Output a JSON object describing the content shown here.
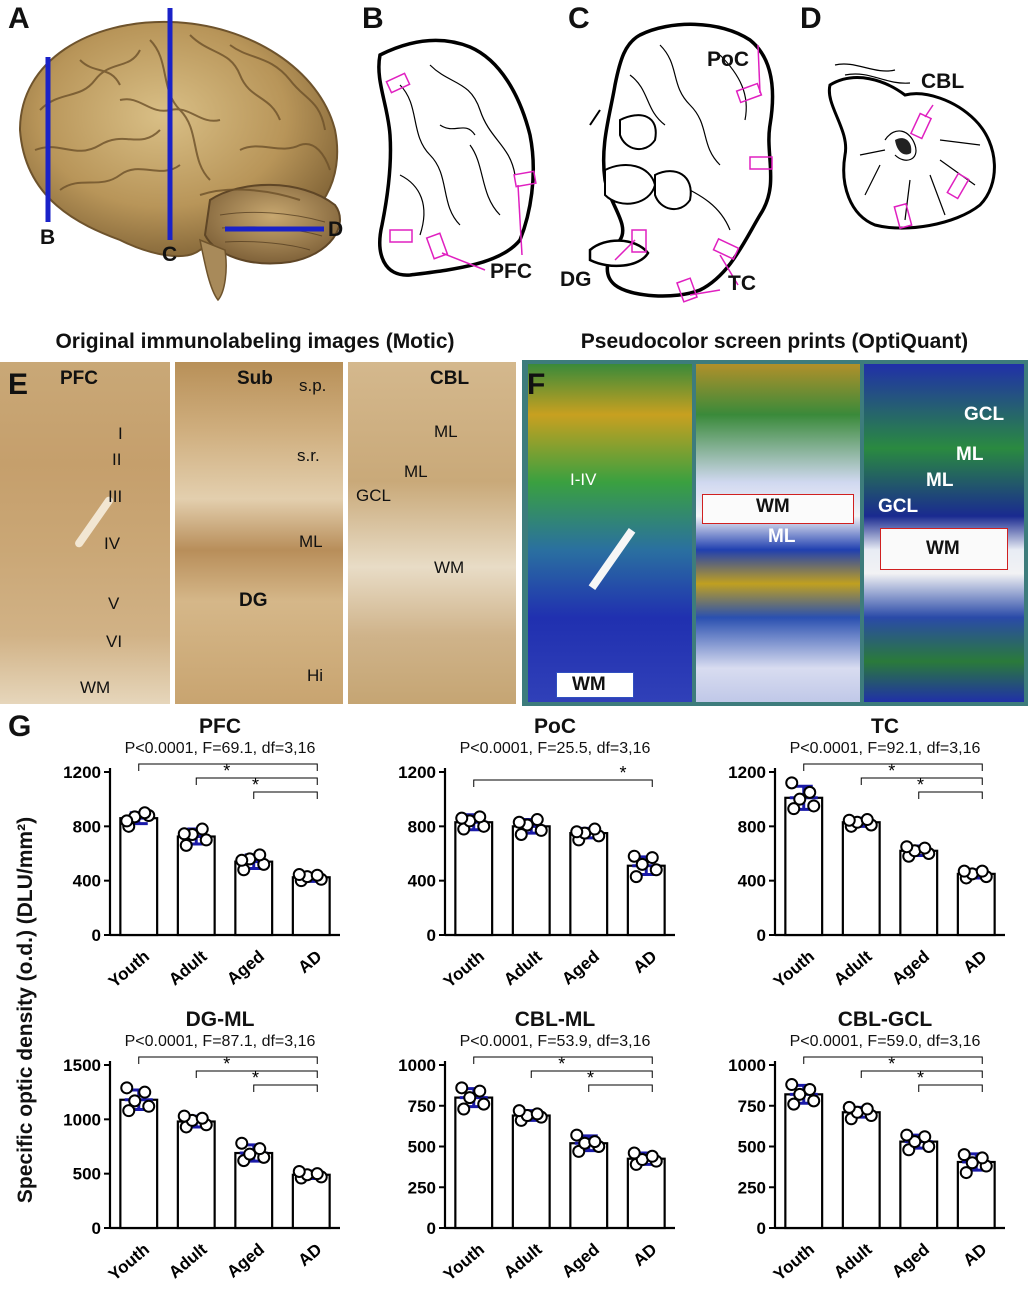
{
  "panel_letters": [
    "A",
    "B",
    "C",
    "D",
    "E",
    "F",
    "G"
  ],
  "panel_a": {
    "cut_labels": [
      "B",
      "C",
      "D"
    ]
  },
  "panel_b": {
    "region": "PFC"
  },
  "panel_c": {
    "regions": [
      "PoC",
      "DG",
      "TC"
    ]
  },
  "panel_d": {
    "region": "CBL"
  },
  "panel_e": {
    "title": "Original immunolabeling images (Motic)",
    "pfc": {
      "heading": "PFC",
      "layers": [
        "I",
        "II",
        "III",
        "IV",
        "V",
        "VI",
        "WM"
      ]
    },
    "sub": {
      "heading": "Sub",
      "labels": [
        "s.p.",
        "s.r.",
        "ML",
        "DG",
        "Hi"
      ]
    },
    "cbl": {
      "heading": "CBL",
      "labels": [
        "ML",
        "ML",
        "GCL",
        "WM"
      ]
    }
  },
  "panel_f": {
    "title": "Pseudocolor screen prints (OptiQuant)",
    "img1": [
      "I-IV",
      "WM"
    ],
    "img2": [
      "WM",
      "ML"
    ],
    "img3": [
      "GCL",
      "ML",
      "ML",
      "GCL",
      "WM"
    ]
  },
  "y_axis_label": "Specific optic density (o.d.) (DLU/mm²)",
  "colors": {
    "bar_fill": "#ffffff",
    "bar_stroke": "#000000",
    "errorbar": "#1a1aa8",
    "marker": "#000000",
    "frame_teal": "#3d7c7c",
    "cut_line": "#1a22c8",
    "roi_box": "#e020c0"
  },
  "chart_data": [
    {
      "type": "bar",
      "title": "PFC",
      "subtitle": "P<0.0001, F=69.1, df=3,16",
      "categories": [
        "Youth",
        "Adult",
        "Aged",
        "AD"
      ],
      "values": [
        860,
        725,
        540,
        425
      ],
      "sd": [
        40,
        55,
        50,
        30
      ],
      "points": [
        [
          800,
          880,
          870,
          900,
          840
        ],
        [
          660,
          700,
          740,
          780,
          745
        ],
        [
          480,
          520,
          560,
          590,
          550
        ],
        [
          400,
          410,
          430,
          440,
          445
        ]
      ],
      "ylim": [
        0,
        1200
      ],
      "yticks": [
        0,
        400,
        800,
        1200
      ],
      "significance": [
        [
          "Youth",
          "AD"
        ],
        [
          "Adult",
          "AD"
        ],
        [
          "Aged",
          "AD"
        ]
      ],
      "sig_label": "*"
    },
    {
      "type": "bar",
      "title": "PoC",
      "subtitle": "P<0.0001, F=25.5, df=3,16",
      "categories": [
        "Youth",
        "Adult",
        "Aged",
        "AD"
      ],
      "values": [
        830,
        800,
        750,
        510
      ],
      "sd": [
        55,
        50,
        35,
        65
      ],
      "points": [
        [
          780,
          800,
          840,
          870,
          860
        ],
        [
          740,
          770,
          810,
          850,
          830
        ],
        [
          700,
          730,
          750,
          780,
          760
        ],
        [
          430,
          480,
          520,
          570,
          580
        ]
      ],
      "ylim": [
        0,
        1200
      ],
      "yticks": [
        0,
        400,
        800,
        1200
      ],
      "significance": [
        [
          "Youth",
          "AD"
        ]
      ],
      "sig_label": "*"
    },
    {
      "type": "bar",
      "title": "TC",
      "subtitle": "P<0.0001, F=92.1, df=3,16",
      "categories": [
        "Youth",
        "Adult",
        "Aged",
        "AD"
      ],
      "values": [
        1010,
        830,
        620,
        450
      ],
      "sd": [
        85,
        30,
        35,
        30
      ],
      "points": [
        [
          930,
          950,
          1000,
          1050,
          1120
        ],
        [
          800,
          810,
          830,
          850,
          845
        ],
        [
          580,
          600,
          620,
          640,
          650
        ],
        [
          420,
          430,
          450,
          470,
          470
        ]
      ],
      "ylim": [
        0,
        1200
      ],
      "yticks": [
        0,
        400,
        800,
        1200
      ],
      "significance": [
        [
          "Youth",
          "AD"
        ],
        [
          "Adult",
          "AD"
        ],
        [
          "Aged",
          "AD"
        ]
      ],
      "sig_label": "*"
    },
    {
      "type": "bar",
      "title": "DG-ML",
      "subtitle": "P<0.0001, F=87.1, df=3,16",
      "categories": [
        "Youth",
        "Adult",
        "Aged",
        "AD"
      ],
      "values": [
        1180,
        980,
        690,
        490
      ],
      "sd": [
        90,
        50,
        75,
        35
      ],
      "points": [
        [
          1080,
          1120,
          1170,
          1250,
          1290
        ],
        [
          930,
          950,
          990,
          1010,
          1030
        ],
        [
          620,
          650,
          680,
          730,
          780
        ],
        [
          460,
          470,
          490,
          500,
          520
        ]
      ],
      "ylim": [
        0,
        1500
      ],
      "yticks": [
        0,
        500,
        1000,
        1500
      ],
      "significance": [
        [
          "Youth",
          "AD"
        ],
        [
          "Adult",
          "AD"
        ],
        [
          "Aged",
          "AD"
        ]
      ],
      "sig_label": "*"
    },
    {
      "type": "bar",
      "title": "CBL-ML",
      "subtitle": "P<0.0001, F=53.9, df=3,16",
      "categories": [
        "Youth",
        "Adult",
        "Aged",
        "AD"
      ],
      "values": [
        800,
        690,
        520,
        425
      ],
      "sd": [
        55,
        30,
        45,
        35
      ],
      "points": [
        [
          730,
          760,
          800,
          840,
          860
        ],
        [
          660,
          680,
          690,
          700,
          720
        ],
        [
          470,
          500,
          520,
          530,
          570
        ],
        [
          390,
          410,
          420,
          440,
          460
        ]
      ],
      "ylim": [
        0,
        1000
      ],
      "yticks": [
        0,
        250,
        500,
        750,
        1000
      ],
      "significance": [
        [
          "Youth",
          "AD"
        ],
        [
          "Adult",
          "AD"
        ],
        [
          "Aged",
          "AD"
        ]
      ],
      "sig_label": "*"
    },
    {
      "type": "bar",
      "title": "CBL-GCL",
      "subtitle": "P<0.0001, F=59.0, df=3,16",
      "categories": [
        "Youth",
        "Adult",
        "Aged",
        "AD"
      ],
      "values": [
        820,
        710,
        530,
        405
      ],
      "sd": [
        55,
        30,
        40,
        50
      ],
      "points": [
        [
          760,
          780,
          820,
          850,
          880
        ],
        [
          670,
          690,
          710,
          730,
          740
        ],
        [
          480,
          500,
          530,
          560,
          570
        ],
        [
          340,
          380,
          400,
          430,
          450
        ]
      ],
      "ylim": [
        0,
        1000
      ],
      "yticks": [
        0,
        250,
        500,
        750,
        1000
      ],
      "significance": [
        [
          "Youth",
          "AD"
        ],
        [
          "Adult",
          "AD"
        ],
        [
          "Aged",
          "AD"
        ]
      ],
      "sig_label": "*"
    }
  ]
}
